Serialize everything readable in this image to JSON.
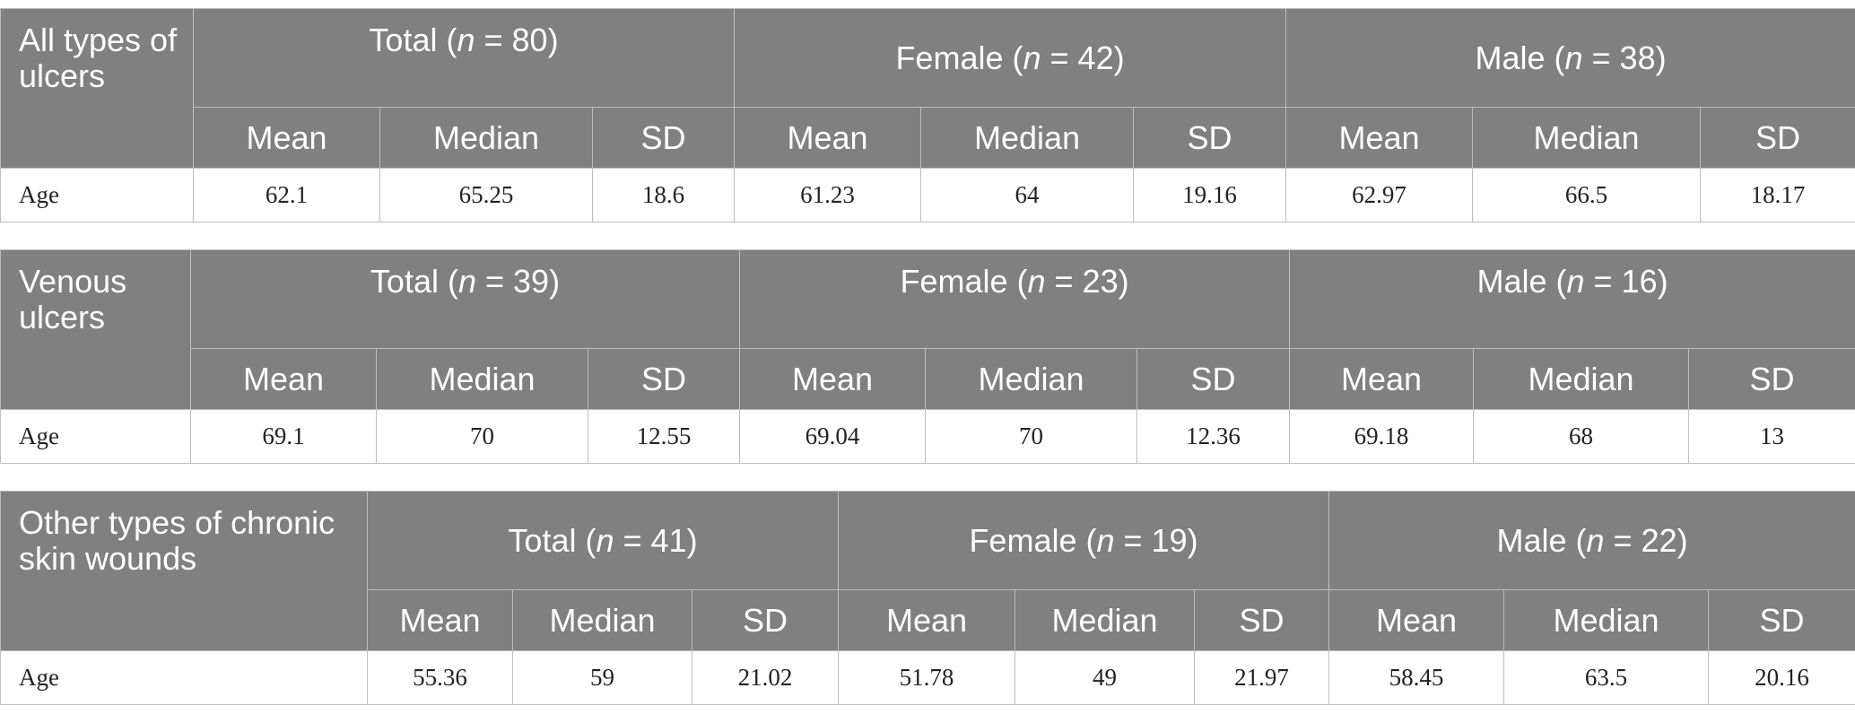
{
  "tables": [
    {
      "corner_label": "All types of ulcers",
      "groups": [
        {
          "name": "Total",
          "n_label": "n",
          "n_value": " = 80"
        },
        {
          "name": "Female",
          "n_label": "n",
          "n_value": " = 42"
        },
        {
          "name": "Male",
          "n_label": "n",
          "n_value": " = 38"
        }
      ],
      "stat_headers": [
        "Mean",
        "Median",
        "SD",
        "Mean",
        "Median",
        "SD",
        "Mean",
        "Median",
        "SD"
      ],
      "row": {
        "label": "Age",
        "values": [
          "62.1",
          "65.25",
          "18.6",
          "61.23",
          "64",
          "19.16",
          "62.97",
          "66.5",
          "18.17"
        ]
      }
    },
    {
      "corner_label": "Venous ulcers",
      "groups": [
        {
          "name": "Total",
          "n_label": "n",
          "n_value": " = 39"
        },
        {
          "name": "Female",
          "n_label": "n",
          "n_value": " = 23"
        },
        {
          "name": "Male",
          "n_label": "n",
          "n_value": " = 16"
        }
      ],
      "stat_headers": [
        "Mean",
        "Median",
        "SD",
        "Mean",
        "Median",
        "SD",
        "Mean",
        "Median",
        "SD"
      ],
      "row": {
        "label": "Age",
        "values": [
          "69.1",
          "70",
          "12.55",
          "69.04",
          "70",
          "12.36",
          "69.18",
          "68",
          "13"
        ]
      }
    },
    {
      "corner_label": "Other types of chronic skin wounds",
      "groups": [
        {
          "name": "Total",
          "n_label": "n",
          "n_value": " = 41"
        },
        {
          "name": "Female",
          "n_label": "n",
          "n_value": " = 19"
        },
        {
          "name": "Male",
          "n_label": "n",
          "n_value": " = 22"
        }
      ],
      "stat_headers": [
        "Mean",
        "Median",
        "SD",
        "Mean",
        "Median",
        "SD",
        "Mean",
        "Median",
        "SD"
      ],
      "row": {
        "label": "Age",
        "values": [
          "55.36",
          "59",
          "21.02",
          "51.78",
          "49",
          "21.97",
          "58.45",
          "63.5",
          "20.16"
        ]
      }
    }
  ]
}
